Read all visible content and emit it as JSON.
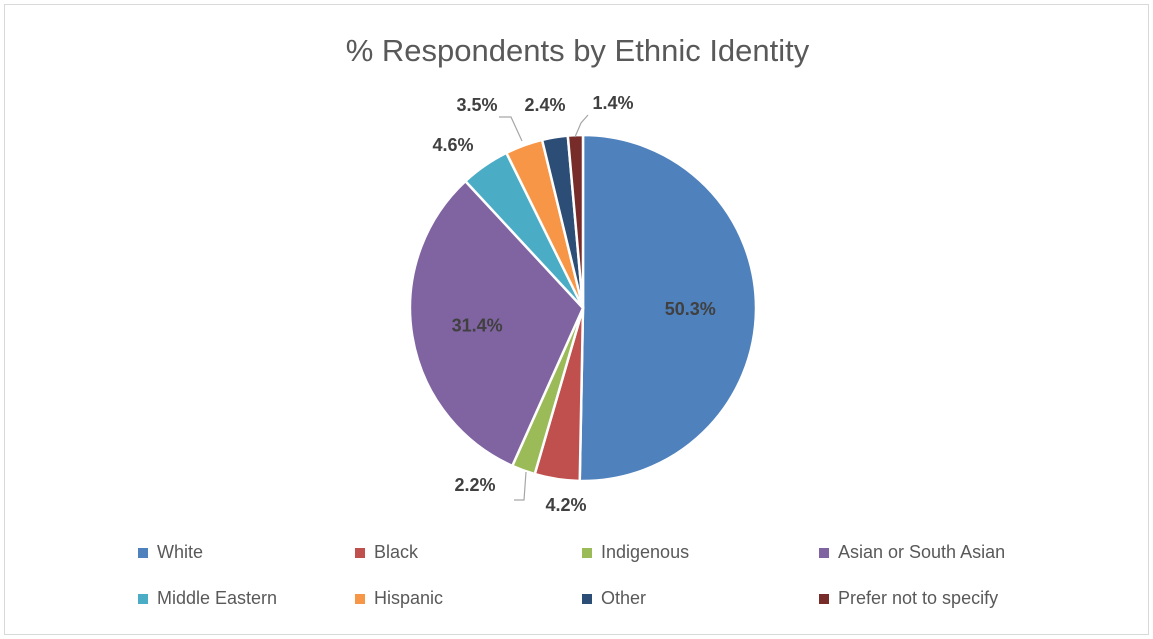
{
  "chart_data": {
    "type": "pie",
    "title": "% Respondents by Ethnic Identity",
    "categories": [
      "White",
      "Black",
      "Indigenous",
      "Asian or South Asian",
      "Middle Eastern",
      "Hispanic",
      "Other",
      "Prefer not to specify"
    ],
    "values": [
      50.3,
      4.2,
      2.2,
      31.4,
      4.6,
      3.5,
      2.4,
      1.4
    ],
    "labels": [
      "50.3%",
      "4.2%",
      "2.2%",
      "31.4%",
      "4.6%",
      "3.5%",
      "2.4%",
      "1.4%"
    ],
    "colors": [
      "#4f81bd",
      "#c0504d",
      "#9bbb59",
      "#8064a2",
      "#4bacc6",
      "#f79646",
      "#2c4d75",
      "#772c2a"
    ],
    "legend_position": "bottom",
    "start_angle_deg": 0,
    "direction": "clockwise"
  }
}
